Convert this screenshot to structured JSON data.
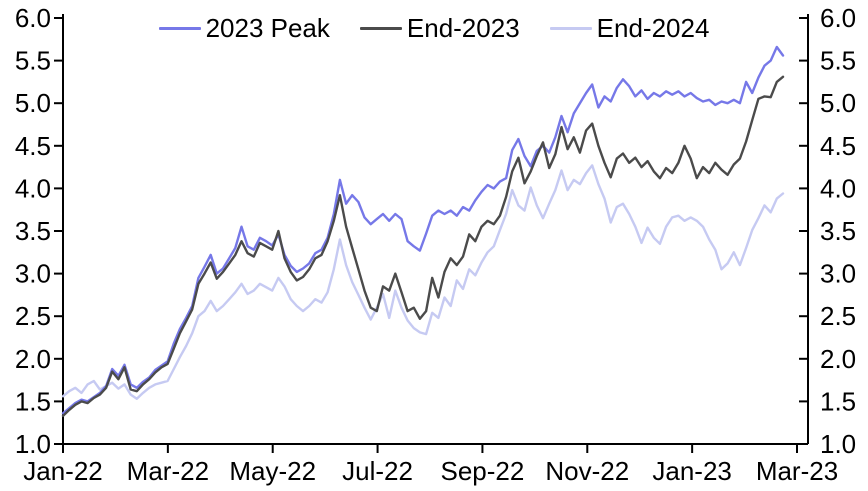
{
  "legend": {
    "items": [
      {
        "label": "2023 Peak"
      },
      {
        "label": "End-2023"
      },
      {
        "label": "End-2024"
      }
    ]
  },
  "chart_data": {
    "type": "line",
    "title": "",
    "xlabel": "",
    "ylabel": "",
    "grid": false,
    "legend_position": "top-center",
    "y_axis": {
      "min": 1.0,
      "max": 6.0,
      "tick_step": 0.5,
      "tick_labels": [
        "1.0",
        "1.5",
        "2.0",
        "2.5",
        "3.0",
        "3.5",
        "4.0",
        "4.5",
        "5.0",
        "5.5",
        "6.0"
      ],
      "sides": "both"
    },
    "x_axis": {
      "tick_labels": [
        "Jan-22",
        "Mar-22",
        "May-22",
        "Jul-22",
        "Sep-22",
        "Nov-22",
        "Jan-23",
        "Mar-23"
      ],
      "data_start": "Jan-22",
      "data_end": "late Feb-23"
    },
    "series": [
      {
        "name": "End-2024",
        "color": "#c6caf2",
        "values": [
          1.56,
          1.62,
          1.66,
          1.6,
          1.7,
          1.74,
          1.64,
          1.68,
          1.72,
          1.65,
          1.7,
          1.58,
          1.53,
          1.6,
          1.66,
          1.7,
          1.72,
          1.74,
          1.88,
          2.02,
          2.15,
          2.3,
          2.5,
          2.56,
          2.68,
          2.56,
          2.62,
          2.7,
          2.78,
          2.88,
          2.76,
          2.8,
          2.88,
          2.84,
          2.8,
          2.95,
          2.85,
          2.7,
          2.62,
          2.56,
          2.62,
          2.7,
          2.66,
          2.78,
          3.05,
          3.4,
          3.1,
          2.9,
          2.75,
          2.6,
          2.46,
          2.6,
          2.76,
          2.48,
          2.8,
          2.6,
          2.45,
          2.36,
          2.31,
          2.29,
          2.54,
          2.48,
          2.72,
          2.62,
          2.92,
          2.82,
          3.05,
          2.98,
          3.13,
          3.25,
          3.32,
          3.51,
          3.7,
          3.98,
          3.8,
          3.74,
          4.01,
          3.8,
          3.65,
          3.82,
          3.98,
          4.21,
          3.98,
          4.1,
          4.05,
          4.18,
          4.27,
          4.05,
          3.88,
          3.6,
          3.78,
          3.82,
          3.7,
          3.55,
          3.36,
          3.54,
          3.42,
          3.35,
          3.55,
          3.66,
          3.68,
          3.62,
          3.66,
          3.62,
          3.55,
          3.4,
          3.28,
          3.05,
          3.12,
          3.25,
          3.1,
          3.3,
          3.51,
          3.65,
          3.8,
          3.72,
          3.88,
          3.94
        ]
      },
      {
        "name": "2023 Peak",
        "color": "#7678e8",
        "values": [
          1.36,
          1.42,
          1.48,
          1.52,
          1.5,
          1.55,
          1.6,
          1.68,
          1.88,
          1.8,
          1.93,
          1.7,
          1.66,
          1.73,
          1.78,
          1.87,
          1.92,
          1.97,
          2.18,
          2.35,
          2.48,
          2.62,
          2.95,
          3.08,
          3.22,
          3.0,
          3.06,
          3.18,
          3.3,
          3.55,
          3.32,
          3.28,
          3.42,
          3.38,
          3.33,
          3.46,
          3.22,
          3.09,
          3.02,
          3.06,
          3.12,
          3.24,
          3.28,
          3.42,
          3.7,
          4.1,
          3.82,
          3.92,
          3.84,
          3.66,
          3.58,
          3.64,
          3.7,
          3.62,
          3.7,
          3.64,
          3.38,
          3.32,
          3.27,
          3.47,
          3.68,
          3.74,
          3.7,
          3.74,
          3.68,
          3.78,
          3.74,
          3.86,
          3.96,
          4.04,
          4.0,
          4.08,
          4.12,
          4.45,
          4.58,
          4.38,
          4.26,
          4.44,
          4.5,
          4.42,
          4.6,
          4.85,
          4.66,
          4.88,
          5.0,
          5.12,
          5.22,
          4.95,
          5.08,
          5.02,
          5.18,
          5.28,
          5.2,
          5.08,
          5.15,
          5.05,
          5.12,
          5.08,
          5.14,
          5.1,
          5.14,
          5.08,
          5.12,
          5.06,
          5.02,
          5.04,
          4.98,
          5.02,
          5.0,
          5.04,
          5.0,
          5.25,
          5.12,
          5.3,
          5.44,
          5.5,
          5.66,
          5.56
        ]
      },
      {
        "name": "End-2023",
        "color": "#4b4b4b",
        "values": [
          1.33,
          1.4,
          1.46,
          1.5,
          1.48,
          1.54,
          1.58,
          1.66,
          1.85,
          1.76,
          1.9,
          1.64,
          1.62,
          1.7,
          1.76,
          1.84,
          1.9,
          1.94,
          2.12,
          2.3,
          2.44,
          2.58,
          2.88,
          3.0,
          3.13,
          2.94,
          3.02,
          3.12,
          3.22,
          3.38,
          3.24,
          3.2,
          3.36,
          3.32,
          3.28,
          3.5,
          3.18,
          3.02,
          2.92,
          2.96,
          3.05,
          3.18,
          3.22,
          3.38,
          3.62,
          3.92,
          3.55,
          3.3,
          3.05,
          2.8,
          2.6,
          2.56,
          2.85,
          2.8,
          3.0,
          2.78,
          2.56,
          2.6,
          2.47,
          2.56,
          2.95,
          2.72,
          3.02,
          3.18,
          3.1,
          3.2,
          3.46,
          3.38,
          3.55,
          3.62,
          3.58,
          3.68,
          3.9,
          4.2,
          4.36,
          4.06,
          4.2,
          4.38,
          4.54,
          4.24,
          4.4,
          4.72,
          4.46,
          4.6,
          4.42,
          4.68,
          4.76,
          4.5,
          4.3,
          4.13,
          4.35,
          4.41,
          4.3,
          4.36,
          4.25,
          4.32,
          4.2,
          4.12,
          4.24,
          4.18,
          4.3,
          4.5,
          4.35,
          4.12,
          4.25,
          4.18,
          4.3,
          4.22,
          4.16,
          4.28,
          4.35,
          4.55,
          4.8,
          5.05,
          5.08,
          5.07,
          5.25,
          5.31
        ]
      }
    ],
    "legend_order": [
      "2023 Peak",
      "End-2023",
      "End-2024"
    ],
    "colors": {
      "peak_2023": "#7678e8",
      "end_2023": "#4b4b4b",
      "end_2024": "#c6caf2",
      "axis": "#000000",
      "background": "#ffffff"
    }
  }
}
